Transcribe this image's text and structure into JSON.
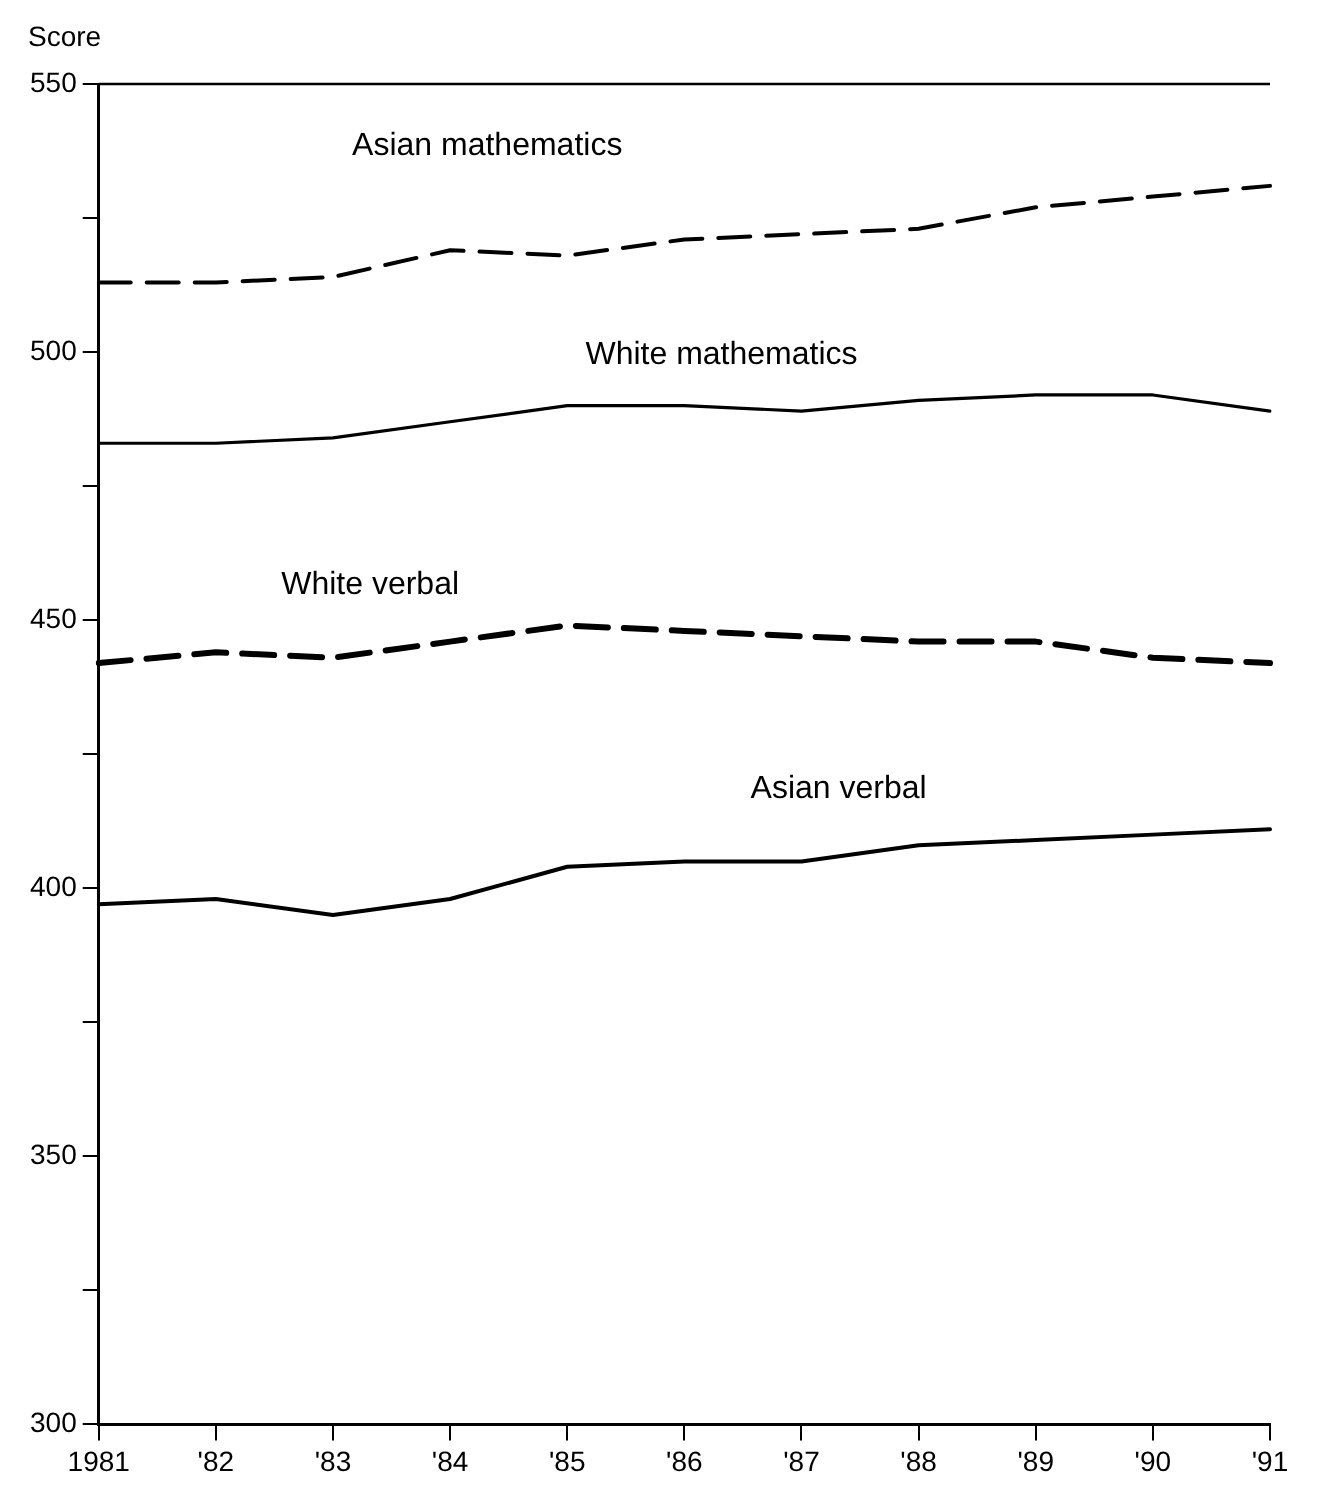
{
  "chart_data": {
    "type": "line",
    "ylabel": "Score",
    "categories": [
      "1981",
      "'82",
      "'83",
      "'84",
      "'85",
      "'86",
      "'87",
      "'88",
      "'89",
      "'90",
      "'91"
    ],
    "ylim": [
      300,
      550
    ],
    "yticks": [
      300,
      {
        "value": 325,
        "label": null
      },
      350,
      {
        "value": 375,
        "label": null
      },
      400,
      {
        "value": 425,
        "label": null
      },
      450,
      {
        "value": 475,
        "label": null
      },
      500,
      {
        "value": 525,
        "label": null
      },
      550
    ],
    "grid": false,
    "legend": false,
    "marker": "none",
    "series": [
      {
        "name": "Asian mathematics",
        "color": "#000000",
        "line_style": "dashed",
        "values": [
          513,
          513,
          514,
          519,
          518,
          521,
          522,
          523,
          527,
          529,
          531
        ]
      },
      {
        "name": "White mathematics",
        "color": "#000000",
        "line_style": "solid",
        "values": [
          483,
          483,
          484,
          487,
          490,
          490,
          489,
          491,
          492,
          492,
          489
        ]
      },
      {
        "name": "White verbal",
        "color": "#000000",
        "line_style": "dashed",
        "values": [
          442,
          444,
          443,
          446,
          449,
          448,
          447,
          446,
          446,
          443,
          442
        ]
      },
      {
        "name": "Asian verbal",
        "color": "#000000",
        "line_style": "solid",
        "values": [
          397,
          398,
          395,
          398,
          404,
          405,
          405,
          408,
          409,
          410,
          411
        ]
      }
    ]
  }
}
